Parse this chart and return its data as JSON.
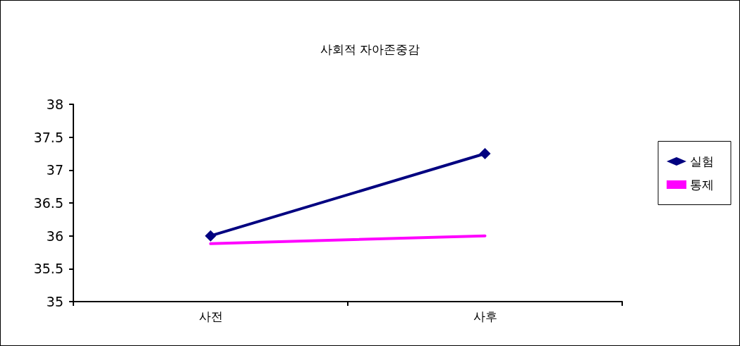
{
  "chart_data": {
    "type": "line",
    "title": "사회적 자아존중감",
    "categories": [
      "사전",
      "사후"
    ],
    "series": [
      {
        "name": "실험",
        "color": "#000080",
        "values": [
          36,
          37.25
        ],
        "marker": "diamond"
      },
      {
        "name": "통제",
        "color": "#ff00ff",
        "values": [
          35.88,
          36
        ],
        "marker": "none"
      }
    ],
    "ylim": [
      35,
      38
    ],
    "yticks": [
      35,
      35.5,
      36,
      36.5,
      37,
      37.5,
      38
    ],
    "grid": false,
    "legend": "right",
    "line_style": "solid"
  }
}
